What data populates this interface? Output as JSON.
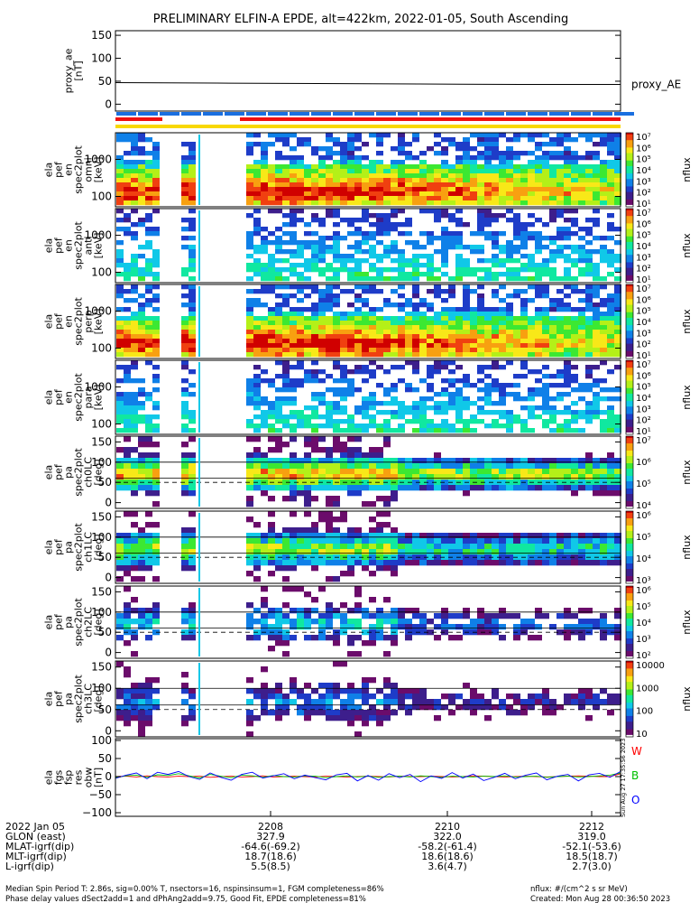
{
  "title": "PRELIMINARY ELFIN-A EPDE, alt=422km, 2022-01-05, South Ascending",
  "colors": {
    "ae_line": "#000000",
    "bar_blue": "#1a6fe0",
    "bar_red": "#f01010",
    "bar_yellow": "#f8d800",
    "fgm_w": "#ff0000",
    "fgm_b": "#00c000",
    "fgm_o": "#0000ff"
  },
  "chart_data": [
    {
      "type": "line",
      "name": "proxy_ae",
      "ylabel": [
        "proxy_ae",
        "[nT]"
      ],
      "yticks": [
        "150",
        "100",
        "50",
        "0"
      ],
      "ylim": [
        -15,
        160
      ],
      "x": [
        0,
        0.2,
        0.4,
        0.6,
        0.8,
        1.0
      ],
      "values": [
        47,
        46,
        45,
        44,
        43,
        43
      ],
      "legend": "proxy_AE"
    },
    {
      "type": "heatmap",
      "name": "omni",
      "ylabel": [
        "ela",
        "pef",
        "en",
        "spec2plot",
        "omni",
        "[keV]"
      ],
      "yticks": [
        "1000",
        "100"
      ],
      "cbticks": [
        "10⁷",
        "10⁶",
        "10⁵",
        "10⁴",
        "10³",
        "10²",
        "10¹"
      ],
      "cblabel": "nflux",
      "style": "energy",
      "intensity": 1.0
    },
    {
      "type": "heatmap",
      "name": "anti",
      "ylabel": [
        "ela",
        "pef",
        "en",
        "spec2plot",
        "anti",
        "[keV]"
      ],
      "yticks": [
        "1000",
        "100"
      ],
      "cbticks": [
        "10⁷",
        "10⁶",
        "10⁵",
        "10⁴",
        "10³",
        "10²",
        "10¹"
      ],
      "cblabel": "nflux",
      "style": "energy",
      "intensity": 0.45
    },
    {
      "type": "heatmap",
      "name": "perp",
      "ylabel": [
        "ela",
        "pef",
        "en",
        "spec2plot",
        "perp",
        "[keV]"
      ],
      "yticks": [
        "1000",
        "100"
      ],
      "cbticks": [
        "10⁷",
        "10⁶",
        "10⁵",
        "10⁴",
        "10³",
        "10²",
        "10¹"
      ],
      "cblabel": "nflux",
      "style": "energy",
      "intensity": 1.0
    },
    {
      "type": "heatmap",
      "name": "para",
      "ylabel": [
        "ela",
        "pef",
        "en",
        "spec2plot",
        "para",
        "[keV]"
      ],
      "yticks": [
        "1000",
        "100"
      ],
      "cbticks": [
        "10⁷",
        "10⁶",
        "10⁵",
        "10⁴",
        "10³",
        "10²",
        "10¹"
      ],
      "cblabel": "nflux",
      "style": "energy",
      "intensity": 0.45
    },
    {
      "type": "heatmap",
      "name": "ch0LC",
      "ylabel": [
        "ela",
        "pef",
        "pa",
        "spec2plot",
        "ch0LC",
        "[deg]"
      ],
      "yticks": [
        "150",
        "100",
        "50",
        "0"
      ],
      "cbticks": [
        "10⁷",
        "10⁶",
        "10⁵",
        "10⁴"
      ],
      "cblabel": "nflux",
      "style": "pitch",
      "intensity": 1.0
    },
    {
      "type": "heatmap",
      "name": "ch1LC",
      "ylabel": [
        "ela",
        "pef",
        "pa",
        "spec2plot",
        "ch1LC",
        "[deg]"
      ],
      "yticks": [
        "150",
        "100",
        "50",
        "0"
      ],
      "cbticks": [
        "10⁶",
        "10⁵",
        "10⁴",
        "10³"
      ],
      "cblabel": "nflux",
      "style": "pitch",
      "intensity": 0.8
    },
    {
      "type": "heatmap",
      "name": "ch2LC",
      "ylabel": [
        "ela",
        "pef",
        "pa",
        "spec2plot",
        "ch2LC",
        "[deg]"
      ],
      "yticks": [
        "150",
        "100",
        "50",
        "0"
      ],
      "cbticks": [
        "10⁶",
        "10⁵",
        "10⁴",
        "10³",
        "10²"
      ],
      "cblabel": "nflux",
      "style": "pitch",
      "intensity": 0.6
    },
    {
      "type": "heatmap",
      "name": "ch3LC",
      "ylabel": [
        "ela",
        "pef",
        "pa",
        "spec2plot",
        "ch3LC",
        "[deg]"
      ],
      "yticks": [
        "150",
        "100",
        "50",
        "0"
      ],
      "cbticks": [
        "10000",
        "1000",
        "100",
        "10"
      ],
      "cblabel": "nflux",
      "style": "pitch",
      "intensity": 0.45
    },
    {
      "type": "line",
      "name": "fgm",
      "ylabel": [
        "ela",
        "fgs",
        "fsp",
        "res",
        "obw",
        "[nT]"
      ],
      "yticks": [
        "100",
        "50",
        "0",
        "−50",
        "−100"
      ],
      "ylim": [
        -110,
        105
      ],
      "legend": [
        "W",
        "B",
        "O"
      ],
      "series": [
        {
          "name": "W",
          "values": [
            0,
            1,
            -1,
            2,
            0,
            -1,
            1,
            0,
            1,
            -2,
            0,
            1,
            -1,
            0,
            2,
            -1,
            0,
            1,
            0,
            -1,
            1,
            0,
            -1,
            0,
            1,
            0,
            -1,
            1,
            0,
            0,
            1,
            0,
            -1,
            0,
            2,
            1,
            0,
            -1,
            0,
            1,
            0,
            -1,
            0,
            1,
            2,
            1,
            0,
            0,
            8
          ]
        },
        {
          "name": "B",
          "values": [
            -3,
            2,
            4,
            -2,
            5,
            3,
            8,
            2,
            -4,
            6,
            1,
            -3,
            4,
            2,
            -2,
            3,
            0,
            -1,
            2,
            1,
            -3,
            0,
            2,
            -1,
            1,
            -2,
            0,
            1,
            -1,
            2,
            0,
            -2,
            1,
            0,
            -1,
            1,
            0,
            2,
            -1,
            0,
            1,
            -2,
            0,
            1,
            -1,
            0,
            2,
            4,
            10
          ]
        },
        {
          "name": "O",
          "values": [
            -5,
            4,
            10,
            -6,
            12,
            6,
            14,
            0,
            -8,
            10,
            -2,
            -10,
            6,
            12,
            -4,
            2,
            8,
            -6,
            4,
            -3,
            -9,
            5,
            9,
            -12,
            3,
            -10,
            8,
            -3,
            6,
            -14,
            2,
            -5,
            11,
            -4,
            7,
            -11,
            -2,
            9,
            -6,
            4,
            10,
            -9,
            1,
            6,
            -12,
            5,
            9,
            -2,
            14
          ]
        }
      ]
    }
  ],
  "xaxis": {
    "rows": [
      [
        "2022 Jan 05",
        "2208",
        "2210",
        "2212"
      ],
      [
        "GLON (east)",
        "327.9",
        "322.0",
        "319.0"
      ],
      [
        "MLAT-igrf(dip)",
        "-64.6(-69.2)",
        "-58.2(-61.4)",
        "-52.1(-53.6)"
      ],
      [
        "MLT-igrf(dip)",
        "18.7(18.6)",
        "18.6(18.6)",
        "18.5(18.7)"
      ],
      [
        "L-igrf(dip)",
        "5.5(8.5)",
        "3.6(4.7)",
        "2.7(3.0)"
      ]
    ]
  },
  "side_stamp": "Sun Aug 27 17:35:56 2023",
  "footer": {
    "line1_left": "Median Spin Period T: 2.86s, sig=0.00% T, nsectors=16, nspinsinsum=1, FGM completeness=86%",
    "line2_left": "Phase delay values dSect2add=1 and dPhAng2add=9.75, Good Fit, EPDE completeness=81%",
    "line1_right": "nflux: #/(cm^2 s sr MeV)",
    "line2_right": "Created: Mon Aug 28 00:36:50 2023"
  }
}
